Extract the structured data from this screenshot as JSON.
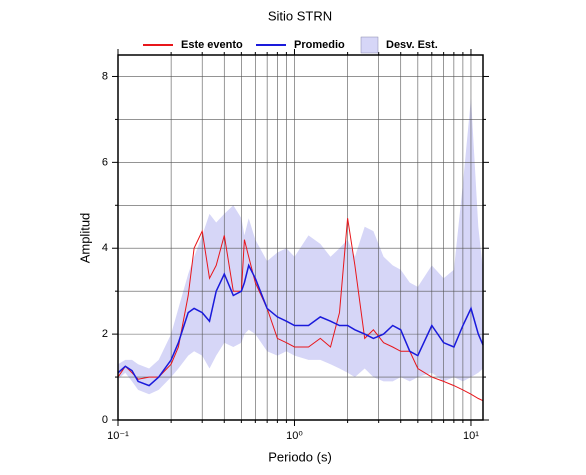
{
  "chart_data": {
    "type": "line",
    "title": "Sitio STRN",
    "x_label": "Periodo (s)",
    "y_label": "Amplitud",
    "x_scale": "log",
    "grid": true,
    "xlim": [
      0.1,
      11.7
    ],
    "ylim": [
      0,
      8.5
    ],
    "xticks": [
      {
        "value": 0.1,
        "label": "10⁻¹"
      },
      {
        "value": 1,
        "label": "10⁰"
      },
      {
        "value": 10,
        "label": "10¹"
      }
    ],
    "x_minor_ticks": [
      0.2,
      0.3,
      0.4,
      0.5,
      0.6,
      0.7,
      0.8,
      0.9,
      2,
      3,
      4,
      5,
      6,
      7,
      8,
      9
    ],
    "yticks": [
      0,
      2,
      4,
      6,
      8
    ],
    "y_minor_ticks": [
      1,
      3,
      5,
      7
    ],
    "x": [
      0.1,
      0.11,
      0.12,
      0.13,
      0.15,
      0.17,
      0.2,
      0.22,
      0.25,
      0.27,
      0.3,
      0.33,
      0.36,
      0.4,
      0.45,
      0.5,
      0.52,
      0.55,
      0.6,
      0.7,
      0.8,
      0.9,
      1.0,
      1.2,
      1.4,
      1.6,
      1.8,
      2.0,
      2.2,
      2.5,
      2.8,
      3.2,
      3.6,
      4,
      4.5,
      5,
      6,
      7,
      8,
      9,
      10,
      11,
      11.7
    ],
    "band": {
      "name": "Desv. Est.",
      "color": "#d6d6f7",
      "upper": [
        1.3,
        1.4,
        1.4,
        1.3,
        1.2,
        1.4,
        2.0,
        2.6,
        3.4,
        3.8,
        4.3,
        4.8,
        4.6,
        4.8,
        5.0,
        4.7,
        4.3,
        4.7,
        4.2,
        3.7,
        3.9,
        4.0,
        3.8,
        4.3,
        4.1,
        3.8,
        4.0,
        4.2,
        3.8,
        4.5,
        4.4,
        3.8,
        3.6,
        3.5,
        3.2,
        3.1,
        3.6,
        3.3,
        3.5,
        5.5,
        7.5,
        4.5,
        3.5
      ],
      "lower": [
        0.95,
        1.1,
        0.9,
        0.7,
        0.6,
        0.7,
        1.0,
        1.2,
        1.5,
        1.6,
        1.5,
        1.2,
        1.5,
        1.8,
        1.7,
        1.8,
        2.0,
        2.1,
        2.0,
        1.6,
        1.5,
        1.6,
        1.5,
        1.4,
        1.4,
        1.3,
        1.2,
        1.1,
        1.0,
        1.2,
        1.0,
        0.9,
        0.9,
        1.0,
        0.9,
        1.0,
        1.1,
        0.9,
        1.0,
        0.9,
        1.0,
        1.1,
        1.2
      ]
    },
    "series": [
      {
        "name": "Este evento",
        "color": "#e8161b",
        "values": [
          1.0,
          1.25,
          1.1,
          0.95,
          1.0,
          1.0,
          1.3,
          1.7,
          2.9,
          4.0,
          4.4,
          3.3,
          3.6,
          4.3,
          3.0,
          3.0,
          4.2,
          3.8,
          3.2,
          2.6,
          1.9,
          1.8,
          1.7,
          1.7,
          1.9,
          1.7,
          2.5,
          4.7,
          3.6,
          1.9,
          2.1,
          1.8,
          1.7,
          1.6,
          1.6,
          1.2,
          1.0,
          0.9,
          0.8,
          0.7,
          0.6,
          0.5,
          0.45
        ]
      },
      {
        "name": "Promedio",
        "color": "#1a1adb",
        "values": [
          1.1,
          1.25,
          1.15,
          0.9,
          0.8,
          1.0,
          1.4,
          1.8,
          2.5,
          2.6,
          2.5,
          2.3,
          3.0,
          3.4,
          2.9,
          3.0,
          3.2,
          3.6,
          3.3,
          2.6,
          2.4,
          2.3,
          2.2,
          2.2,
          2.4,
          2.3,
          2.2,
          2.2,
          2.1,
          2.0,
          1.9,
          2.0,
          2.2,
          2.1,
          1.6,
          1.5,
          2.2,
          1.8,
          1.7,
          2.2,
          2.6,
          2.0,
          1.75
        ]
      }
    ]
  }
}
